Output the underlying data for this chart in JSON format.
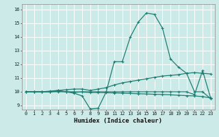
{
  "title": "",
  "xlabel": "Humidex (Indice chaleur)",
  "ylabel": "",
  "bg_color": "#cceae8",
  "grid_color": "#ffffff",
  "line_color": "#1e7d72",
  "x_ticks": [
    0,
    1,
    2,
    3,
    4,
    5,
    6,
    7,
    8,
    9,
    10,
    11,
    12,
    13,
    14,
    15,
    16,
    17,
    18,
    19,
    20,
    21,
    22,
    23
  ],
  "y_ticks": [
    9,
    10,
    11,
    12,
    13,
    14,
    15,
    16
  ],
  "ylim": [
    8.7,
    16.4
  ],
  "xlim": [
    -0.5,
    23.5
  ],
  "series": [
    {
      "name": "main_curve",
      "x": [
        0,
        1,
        2,
        3,
        4,
        5,
        6,
        7,
        8,
        9,
        10,
        11,
        12,
        13,
        14,
        15,
        16,
        17,
        18,
        19,
        20,
        21,
        22,
        23
      ],
      "y": [
        10.0,
        10.0,
        10.0,
        10.0,
        10.1,
        10.0,
        9.9,
        9.7,
        8.75,
        8.8,
        10.0,
        12.2,
        12.2,
        14.0,
        15.1,
        15.75,
        15.65,
        14.65,
        12.4,
        11.8,
        11.35,
        10.0,
        10.0,
        9.5
      ]
    },
    {
      "name": "upper_trend",
      "x": [
        0,
        1,
        2,
        3,
        4,
        5,
        6,
        7,
        8,
        9,
        10,
        11,
        12,
        13,
        14,
        15,
        16,
        17,
        18,
        19,
        20,
        21,
        22,
        23
      ],
      "y": [
        10.0,
        10.0,
        10.0,
        10.05,
        10.1,
        10.15,
        10.2,
        10.2,
        10.1,
        10.2,
        10.3,
        10.5,
        10.65,
        10.75,
        10.85,
        10.95,
        11.05,
        11.15,
        11.2,
        11.25,
        11.35,
        11.4,
        11.35,
        11.3
      ]
    },
    {
      "name": "lower_trend",
      "x": [
        0,
        1,
        2,
        3,
        4,
        5,
        6,
        7,
        8,
        9,
        10,
        11,
        12,
        13,
        14,
        15,
        16,
        17,
        18,
        19,
        20,
        21,
        22,
        23
      ],
      "y": [
        10.0,
        10.0,
        10.0,
        10.0,
        10.0,
        10.0,
        10.0,
        9.98,
        9.95,
        9.95,
        9.93,
        9.92,
        9.9,
        9.88,
        9.86,
        9.84,
        9.82,
        9.8,
        9.78,
        9.75,
        9.72,
        9.7,
        9.65,
        9.55
      ]
    },
    {
      "name": "spike_curve",
      "x": [
        0,
        1,
        2,
        3,
        4,
        5,
        6,
        7,
        8,
        9,
        10,
        11,
        12,
        13,
        14,
        15,
        16,
        17,
        18,
        19,
        20,
        21,
        22,
        23
      ],
      "y": [
        10.0,
        10.0,
        10.0,
        10.0,
        10.05,
        10.0,
        9.95,
        10.0,
        10.0,
        10.0,
        10.0,
        10.0,
        10.0,
        10.0,
        10.0,
        10.0,
        10.0,
        10.0,
        10.0,
        10.0,
        10.0,
        9.8,
        11.55,
        9.55
      ]
    }
  ],
  "marker": "+",
  "markersize": 3.5,
  "linewidth": 0.9,
  "tick_fontsize": 5.0,
  "xlabel_fontsize": 6.5
}
